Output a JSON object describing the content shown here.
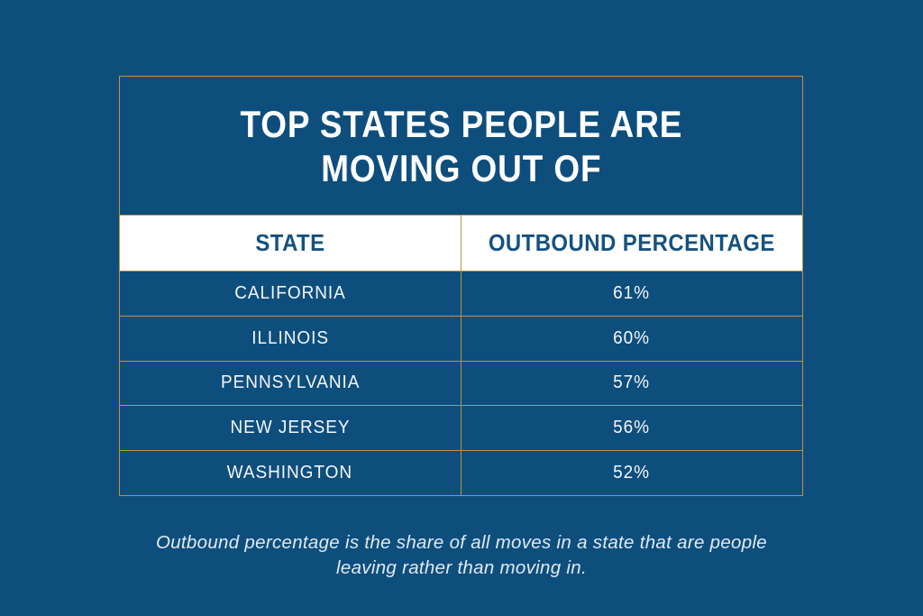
{
  "page": {
    "background_color": "#0E4E7D",
    "table_border_color": "#C2923E",
    "header_bg_color": "#FFFFFF",
    "header_text_color": "#15517F",
    "body_text_color": "#F4F6F8"
  },
  "table": {
    "title_line1": "TOP STATES PEOPLE ARE",
    "title_line2": "MOVING OUT OF",
    "columns": [
      "STATE",
      "OUTBOUND PERCENTAGE"
    ],
    "rows": [
      {
        "state": "CALIFORNIA",
        "outbound": "61%"
      },
      {
        "state": "ILLINOIS",
        "outbound": "60%"
      },
      {
        "state": "PENNSYLVANIA",
        "outbound": "57%"
      },
      {
        "state": "NEW JERSEY",
        "outbound": "56%"
      },
      {
        "state": "WASHINGTON",
        "outbound": "52%"
      }
    ]
  },
  "footnote": {
    "line1": "Outbound percentage is the share of all moves in a state that are people",
    "line2": "leaving rather than moving in."
  },
  "chart_data": {
    "type": "table",
    "title": "TOP STATES PEOPLE ARE MOVING OUT OF",
    "columns": [
      "STATE",
      "OUTBOUND PERCENTAGE"
    ],
    "categories": [
      "CALIFORNIA",
      "ILLINOIS",
      "PENNSYLVANIA",
      "NEW JERSEY",
      "WASHINGTON"
    ],
    "values": [
      61,
      60,
      57,
      56,
      52
    ],
    "note": "Outbound percentage is the share of all moves in a state that are people leaving rather than moving in."
  }
}
